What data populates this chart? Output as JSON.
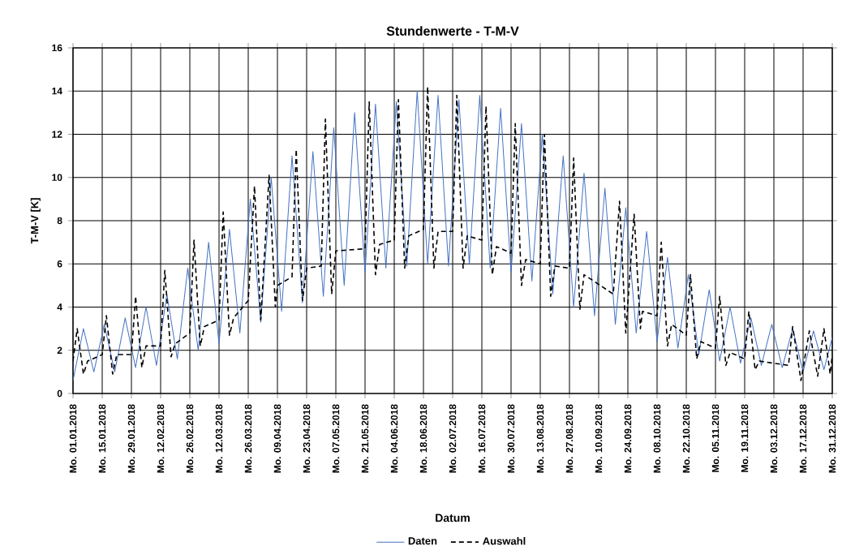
{
  "chart_data": {
    "type": "line",
    "title": "Stundenwerte - T-M-V",
    "xlabel": "Datum",
    "ylabel": "T-M-V [K]",
    "xlim": [
      "2018-01-01",
      "2018-12-31"
    ],
    "ylim": [
      0,
      16
    ],
    "yticks": [
      0,
      2,
      4,
      6,
      8,
      10,
      12,
      14,
      16
    ],
    "xticks": [
      {
        "value": "2018-01-01",
        "label": "Mo. 01.01.2018"
      },
      {
        "value": "2018-01-15",
        "label": "Mo. 15.01.2018"
      },
      {
        "value": "2018-01-29",
        "label": "Mo. 29.01.2018"
      },
      {
        "value": "2018-02-12",
        "label": "Mo. 12.02.2018"
      },
      {
        "value": "2018-02-26",
        "label": "Mo. 26.02.2018"
      },
      {
        "value": "2018-03-12",
        "label": "Mo. 12.03.2018"
      },
      {
        "value": "2018-03-26",
        "label": "Mo. 26.03.2018"
      },
      {
        "value": "2018-04-09",
        "label": "Mo. 09.04.2018"
      },
      {
        "value": "2018-04-23",
        "label": "Mo. 23.04.2018"
      },
      {
        "value": "2018-05-07",
        "label": "Mo. 07.05.2018"
      },
      {
        "value": "2018-05-21",
        "label": "Mo. 21.05.2018"
      },
      {
        "value": "2018-06-04",
        "label": "Mo. 04.06.2018"
      },
      {
        "value": "2018-06-18",
        "label": "Mo. 18.06.2018"
      },
      {
        "value": "2018-07-02",
        "label": "Mo. 02.07.2018"
      },
      {
        "value": "2018-07-16",
        "label": "Mo. 16.07.2018"
      },
      {
        "value": "2018-07-30",
        "label": "Mo. 30.07.2018"
      },
      {
        "value": "2018-08-13",
        "label": "Mo. 13.08.2018"
      },
      {
        "value": "2018-08-27",
        "label": "Mo. 27.08.2018"
      },
      {
        "value": "2018-09-10",
        "label": "Mo. 10.09.2018"
      },
      {
        "value": "2018-09-24",
        "label": "Mo. 24.09.2018"
      },
      {
        "value": "2018-10-08",
        "label": "Mo. 08.10.2018"
      },
      {
        "value": "2018-10-22",
        "label": "Mo. 22.10.2018"
      },
      {
        "value": "2018-11-05",
        "label": "Mo. 05.11.2018"
      },
      {
        "value": "2018-11-19",
        "label": "Mo. 19.11.2018"
      },
      {
        "value": "2018-12-03",
        "label": "Mo. 03.12.2018"
      },
      {
        "value": "2018-12-17",
        "label": "Mo. 17.12.2018"
      },
      {
        "value": "2018-12-31",
        "label": "Mo. 31.12.2018"
      }
    ],
    "grid": true,
    "legend": "bottom",
    "series": [
      {
        "name": "Daten",
        "color": "#4472c4",
        "line_style": "solid",
        "x": [
          "2018-01-01",
          "2018-01-06",
          "2018-01-11",
          "2018-01-16",
          "2018-01-21",
          "2018-01-26",
          "2018-01-31",
          "2018-02-05",
          "2018-02-10",
          "2018-02-15",
          "2018-02-20",
          "2018-02-25",
          "2018-03-02",
          "2018-03-07",
          "2018-03-12",
          "2018-03-17",
          "2018-03-22",
          "2018-03-27",
          "2018-04-01",
          "2018-04-06",
          "2018-04-11",
          "2018-04-16",
          "2018-04-21",
          "2018-04-26",
          "2018-05-01",
          "2018-05-06",
          "2018-05-11",
          "2018-05-16",
          "2018-05-21",
          "2018-05-26",
          "2018-05-31",
          "2018-06-05",
          "2018-06-10",
          "2018-06-15",
          "2018-06-20",
          "2018-06-25",
          "2018-06-30",
          "2018-07-05",
          "2018-07-10",
          "2018-07-15",
          "2018-07-20",
          "2018-07-25",
          "2018-07-30",
          "2018-08-04",
          "2018-08-09",
          "2018-08-14",
          "2018-08-19",
          "2018-08-24",
          "2018-08-29",
          "2018-09-03",
          "2018-09-08",
          "2018-09-13",
          "2018-09-18",
          "2018-09-23",
          "2018-09-28",
          "2018-10-03",
          "2018-10-08",
          "2018-10-13",
          "2018-10-18",
          "2018-10-23",
          "2018-10-28",
          "2018-11-02",
          "2018-11-07",
          "2018-11-12",
          "2018-11-17",
          "2018-11-22",
          "2018-11-27",
          "2018-12-02",
          "2018-12-07",
          "2018-12-12",
          "2018-12-17",
          "2018-12-22",
          "2018-12-27",
          "2018-12-31"
        ],
        "values": [
          0.6,
          3.0,
          1.0,
          3.2,
          1.0,
          3.5,
          1.2,
          4.0,
          1.3,
          4.6,
          1.6,
          5.8,
          2.0,
          7.0,
          2.3,
          7.6,
          2.8,
          9.0,
          3.3,
          10.0,
          3.8,
          11.0,
          4.2,
          11.2,
          4.5,
          12.3,
          5.0,
          13.0,
          5.6,
          13.4,
          5.8,
          13.5,
          5.9,
          14.0,
          6.0,
          13.8,
          5.9,
          13.6,
          6.0,
          13.8,
          5.8,
          13.2,
          5.6,
          12.5,
          5.2,
          12.0,
          4.6,
          11.0,
          4.0,
          10.2,
          3.6,
          9.5,
          3.2,
          8.6,
          2.8,
          7.5,
          2.4,
          6.3,
          2.1,
          5.5,
          1.8,
          4.8,
          1.5,
          4.0,
          1.4,
          3.5,
          1.3,
          3.2,
          1.2,
          3.0,
          1.0,
          2.9,
          1.1,
          2.6
        ]
      },
      {
        "name": "Auswahl",
        "color": "#000000",
        "line_style": "dashed",
        "x": [
          "2018-01-01",
          "2018-01-03",
          "2018-01-06",
          "2018-01-08",
          "2018-01-15",
          "2018-01-17",
          "2018-01-20",
          "2018-01-22",
          "2018-01-29",
          "2018-01-31",
          "2018-02-03",
          "2018-02-05",
          "2018-02-12",
          "2018-02-14",
          "2018-02-17",
          "2018-02-19",
          "2018-02-26",
          "2018-02-28",
          "2018-03-03",
          "2018-03-05",
          "2018-03-12",
          "2018-03-14",
          "2018-03-17",
          "2018-03-19",
          "2018-03-26",
          "2018-03-29",
          "2018-04-01",
          "2018-04-05",
          "2018-04-08",
          "2018-04-09",
          "2018-04-16",
          "2018-04-18",
          "2018-04-21",
          "2018-04-23",
          "2018-04-30",
          "2018-05-02",
          "2018-05-05",
          "2018-05-07",
          "2018-05-21",
          "2018-05-23",
          "2018-05-26",
          "2018-05-28",
          "2018-06-04",
          "2018-06-06",
          "2018-06-09",
          "2018-06-11",
          "2018-06-18",
          "2018-06-20",
          "2018-06-23",
          "2018-06-25",
          "2018-07-02",
          "2018-07-04",
          "2018-07-07",
          "2018-07-09",
          "2018-07-16",
          "2018-07-18",
          "2018-07-21",
          "2018-07-23",
          "2018-07-30",
          "2018-08-01",
          "2018-08-04",
          "2018-08-06",
          "2018-08-13",
          "2018-08-15",
          "2018-08-18",
          "2018-08-20",
          "2018-08-27",
          "2018-08-29",
          "2018-09-01",
          "2018-09-03",
          "2018-09-17",
          "2018-09-20",
          "2018-09-23",
          "2018-09-27",
          "2018-09-30",
          "2018-10-01",
          "2018-10-08",
          "2018-10-10",
          "2018-10-13",
          "2018-10-15",
          "2018-10-22",
          "2018-10-24",
          "2018-10-27",
          "2018-10-29",
          "2018-11-05",
          "2018-11-07",
          "2018-11-10",
          "2018-11-12",
          "2018-11-19",
          "2018-11-21",
          "2018-11-24",
          "2018-11-26",
          "2018-12-10",
          "2018-12-12",
          "2018-12-16",
          "2018-12-20",
          "2018-12-24",
          "2018-12-27",
          "2018-12-30",
          "2018-12-31"
        ],
        "values": [
          1.5,
          3.0,
          0.9,
          1.5,
          1.8,
          3.6,
          0.9,
          1.8,
          1.8,
          4.5,
          1.2,
          2.2,
          2.2,
          5.7,
          1.7,
          2.3,
          2.8,
          7.1,
          2.2,
          3.1,
          3.4,
          8.4,
          2.7,
          3.5,
          4.3,
          9.6,
          3.4,
          10.1,
          4.0,
          5.0,
          5.4,
          11.3,
          4.3,
          5.8,
          5.9,
          12.7,
          4.6,
          6.6,
          6.7,
          13.5,
          5.5,
          6.9,
          7.1,
          13.6,
          5.8,
          7.3,
          7.6,
          14.2,
          5.8,
          7.5,
          7.5,
          13.8,
          5.8,
          7.3,
          7.1,
          13.3,
          5.5,
          6.8,
          6.5,
          12.5,
          5.0,
          6.2,
          6.0,
          12.0,
          4.5,
          5.9,
          5.8,
          10.9,
          3.9,
          5.5,
          4.6,
          8.9,
          2.8,
          8.3,
          3.0,
          3.8,
          3.6,
          7.0,
          2.2,
          3.2,
          2.7,
          5.5,
          1.6,
          2.4,
          2.1,
          4.5,
          1.3,
          1.9,
          1.6,
          3.8,
          1.1,
          1.5,
          1.3,
          3.1,
          0.6,
          2.9,
          0.8,
          3.0,
          0.9,
          1.8
        ]
      }
    ]
  }
}
